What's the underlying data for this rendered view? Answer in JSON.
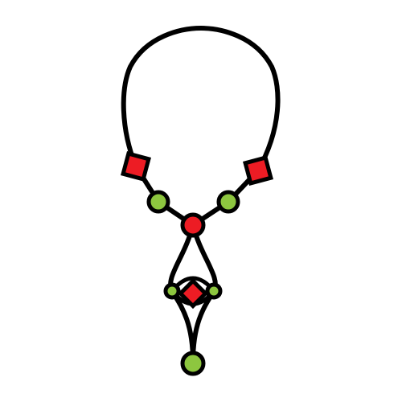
{
  "image": {
    "subject": "necklace-illustration",
    "background_color": "#ffffff"
  },
  "colors": {
    "outline": "#000000",
    "red_bead": "#ed1c24",
    "green_bead": "#8dc63f"
  },
  "icons": {
    "necklace": "necklace-icon",
    "square_gem": "square-gem-icon",
    "round_bead": "round-bead-icon",
    "pendant": "pendant-icon"
  }
}
